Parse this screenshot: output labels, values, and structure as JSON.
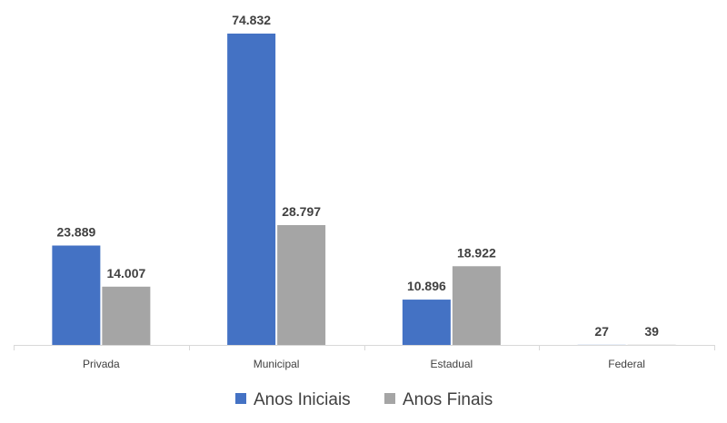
{
  "chart_data": {
    "type": "bar",
    "categories": [
      "Privada",
      "Municipal",
      "Estadual",
      "Federal"
    ],
    "series": [
      {
        "name": "Anos Iniciais",
        "values": [
          23889,
          74832,
          10896,
          27
        ],
        "labels": [
          "23.889",
          "74.832",
          "10.896",
          "27"
        ],
        "color": "#4472C4"
      },
      {
        "name": "Anos Finais",
        "values": [
          14007,
          28797,
          18922,
          39
        ],
        "labels": [
          "14.007",
          "28.797",
          "18.922",
          "39"
        ],
        "color": "#A5A5A5"
      }
    ],
    "ylim": [
      0,
      74832
    ],
    "grid": false,
    "legend_position": "bottom",
    "title": "",
    "xlabel": "",
    "ylabel": ""
  }
}
